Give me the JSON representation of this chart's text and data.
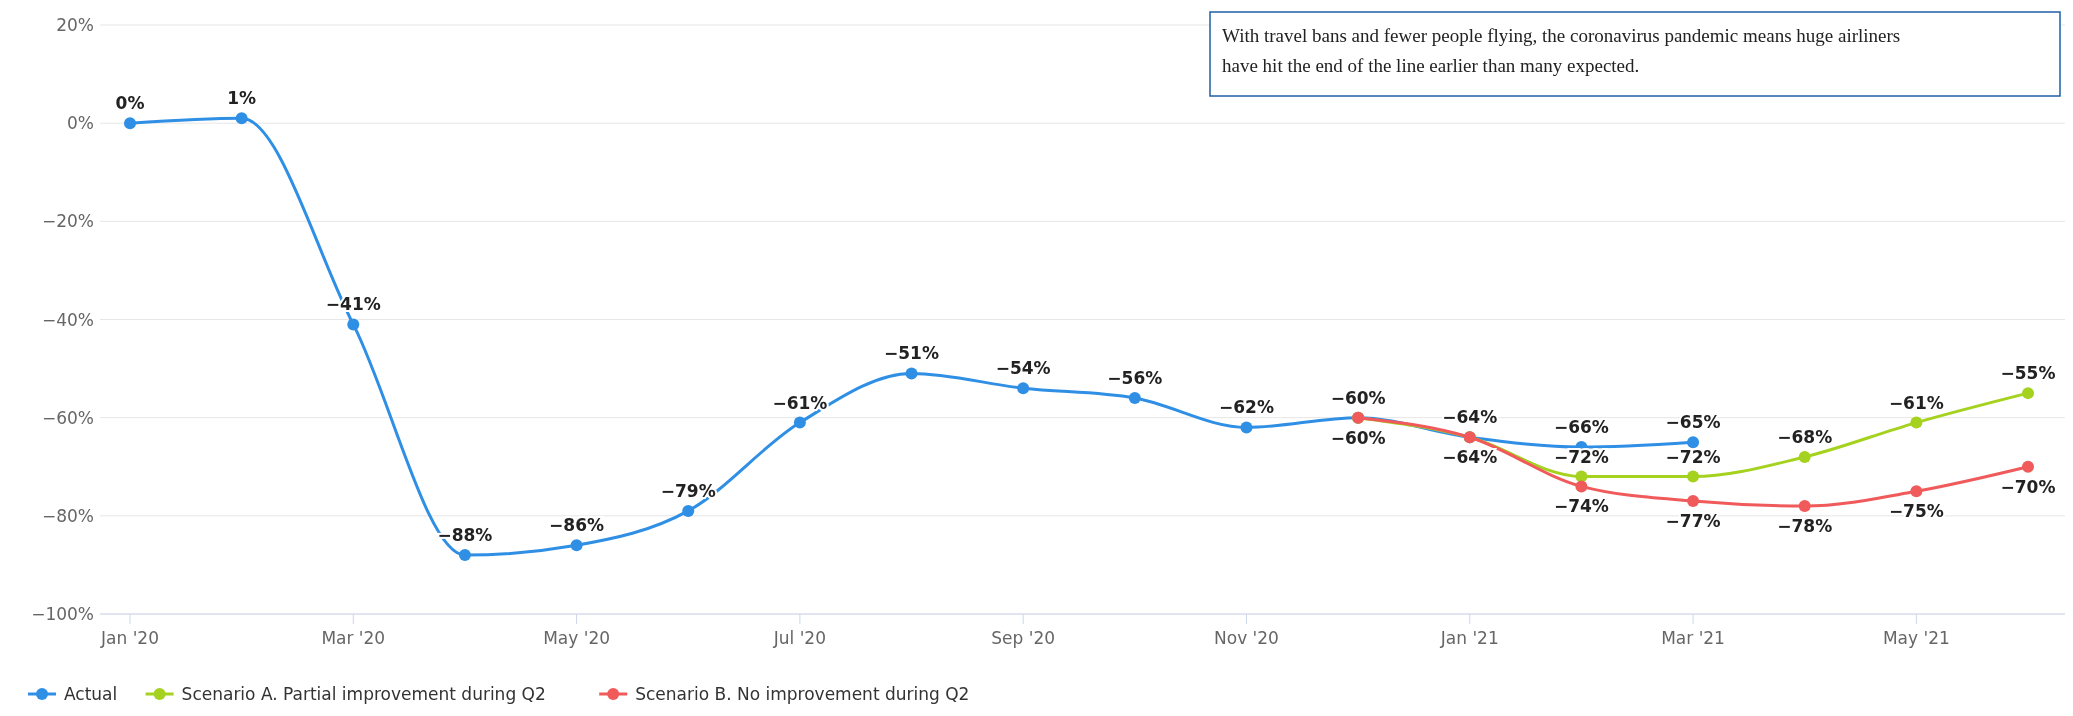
{
  "chart_data": {
    "type": "line",
    "categories": [
      "Jan '20",
      null,
      "Mar '20",
      null,
      "May '20",
      null,
      "Jul '20",
      null,
      "Sep '20",
      null,
      "Nov '20",
      null,
      "Jan '21",
      null,
      "Mar '21",
      null,
      "May '21",
      null
    ],
    "series": [
      {
        "name": "Actual",
        "color": "#2f8fe5",
        "values": [
          0,
          1,
          -41,
          -88,
          -86,
          -79,
          -61,
          -51,
          -54,
          -56,
          -62,
          -60,
          -64,
          -66,
          -65,
          null,
          null,
          null
        ],
        "value_labels": [
          "0%",
          "1%",
          "−41%",
          "−88%",
          "−86%",
          "−79%",
          "−61%",
          "−51%",
          "−54%",
          "−56%",
          "−62%",
          "−60%",
          "−64%",
          "−66%",
          "−65%",
          null,
          null,
          null
        ]
      },
      {
        "name": "Scenario A. Partial improvement during Q2",
        "color": "#a5d21f",
        "values": [
          null,
          null,
          null,
          null,
          null,
          null,
          null,
          null,
          null,
          null,
          null,
          -60,
          -64,
          -72,
          -72,
          -68,
          -61,
          -55
        ],
        "value_labels": [
          null,
          null,
          null,
          null,
          null,
          null,
          null,
          null,
          null,
          null,
          null,
          null,
          null,
          "−72%",
          "−72%",
          "−68%",
          "−61%",
          "−55%"
        ]
      },
      {
        "name": "Scenario B. No improvement during Q2",
        "color": "#f05a5a",
        "values": [
          null,
          null,
          null,
          null,
          null,
          null,
          null,
          null,
          null,
          null,
          null,
          -60,
          -64,
          -74,
          -77,
          -78,
          -75,
          -70
        ],
        "value_labels": [
          null,
          null,
          null,
          null,
          null,
          null,
          null,
          null,
          null,
          null,
          null,
          "−60%",
          "−64%",
          "−74%",
          "−77%",
          "−78%",
          "−75%",
          "−70%"
        ]
      }
    ],
    "ylim": [
      -100,
      20
    ],
    "yticks": [
      {
        "value": -100,
        "label": "−100%"
      },
      {
        "value": -80,
        "label": "−80%"
      },
      {
        "value": -60,
        "label": "−60%"
      },
      {
        "value": -40,
        "label": "−40%"
      },
      {
        "value": -20,
        "label": "−20%"
      },
      {
        "value": 0,
        "label": "0%"
      },
      {
        "value": 20,
        "label": "20%"
      }
    ],
    "grid": "y",
    "legend": "bottom left",
    "marker": "circle",
    "annotations": [
      "With travel bans and fewer people flying, the coronavirus pandemic means huge airliners have hit the end of the line earlier than many expected."
    ]
  }
}
